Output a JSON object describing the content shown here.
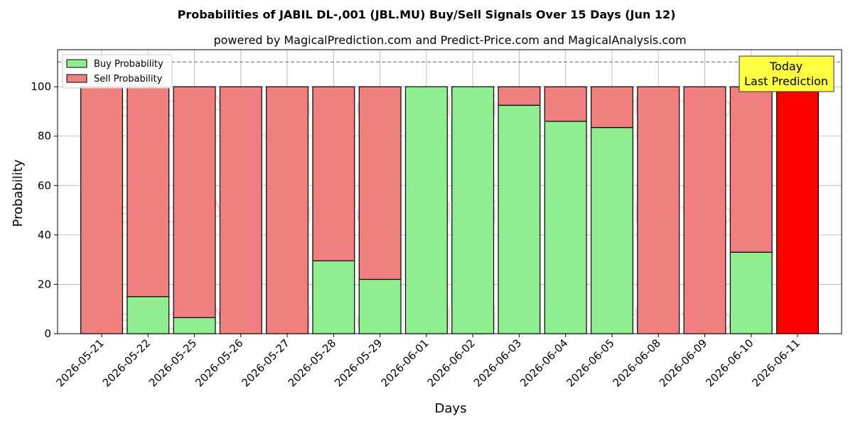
{
  "chart_data": {
    "type": "bar",
    "stacked": true,
    "title": "Probabilities of JABIL DL-,001 (JBL.MU) Buy/Sell Signals Over 15 Days (Jun 12)",
    "subtitle": "powered by MagicalPrediction.com and Predict-Price.com and MagicalAnalysis.com",
    "xlabel": "Days",
    "ylabel": "Probability",
    "ylim": [
      0,
      115
    ],
    "yticks": [
      0,
      20,
      40,
      60,
      80,
      100
    ],
    "grid": true,
    "legend_position": "top-left",
    "reference_line": 110,
    "categories": [
      "2026-05-21",
      "2026-05-22",
      "2026-05-25",
      "2026-05-26",
      "2026-05-27",
      "2026-05-28",
      "2026-05-29",
      "2026-06-01",
      "2026-06-02",
      "2026-06-03",
      "2026-06-04",
      "2026-06-05",
      "2026-06-08",
      "2026-06-09",
      "2026-06-10",
      "2026-06-11"
    ],
    "series": [
      {
        "name": "Buy Probability",
        "color": "#90ee90",
        "values": [
          0,
          15,
          6.5,
          0,
          0,
          29.5,
          22,
          100,
          100,
          92.5,
          86,
          83.5,
          0,
          0,
          33,
          0
        ]
      },
      {
        "name": "Sell Probability",
        "color": "#f08080",
        "values": [
          100,
          85,
          93.5,
          100,
          100,
          70.5,
          78,
          0,
          0,
          7.5,
          14,
          16.5,
          100,
          100,
          67,
          100
        ]
      }
    ],
    "highlight": {
      "index": 15,
      "color": "#ff0000"
    },
    "annotation": {
      "lines": [
        "Today",
        "Last Prediction"
      ],
      "background": "#ffff44"
    },
    "watermarks": [
      "MagicalAnalysis.com",
      "MagicalPrediction.com"
    ]
  }
}
